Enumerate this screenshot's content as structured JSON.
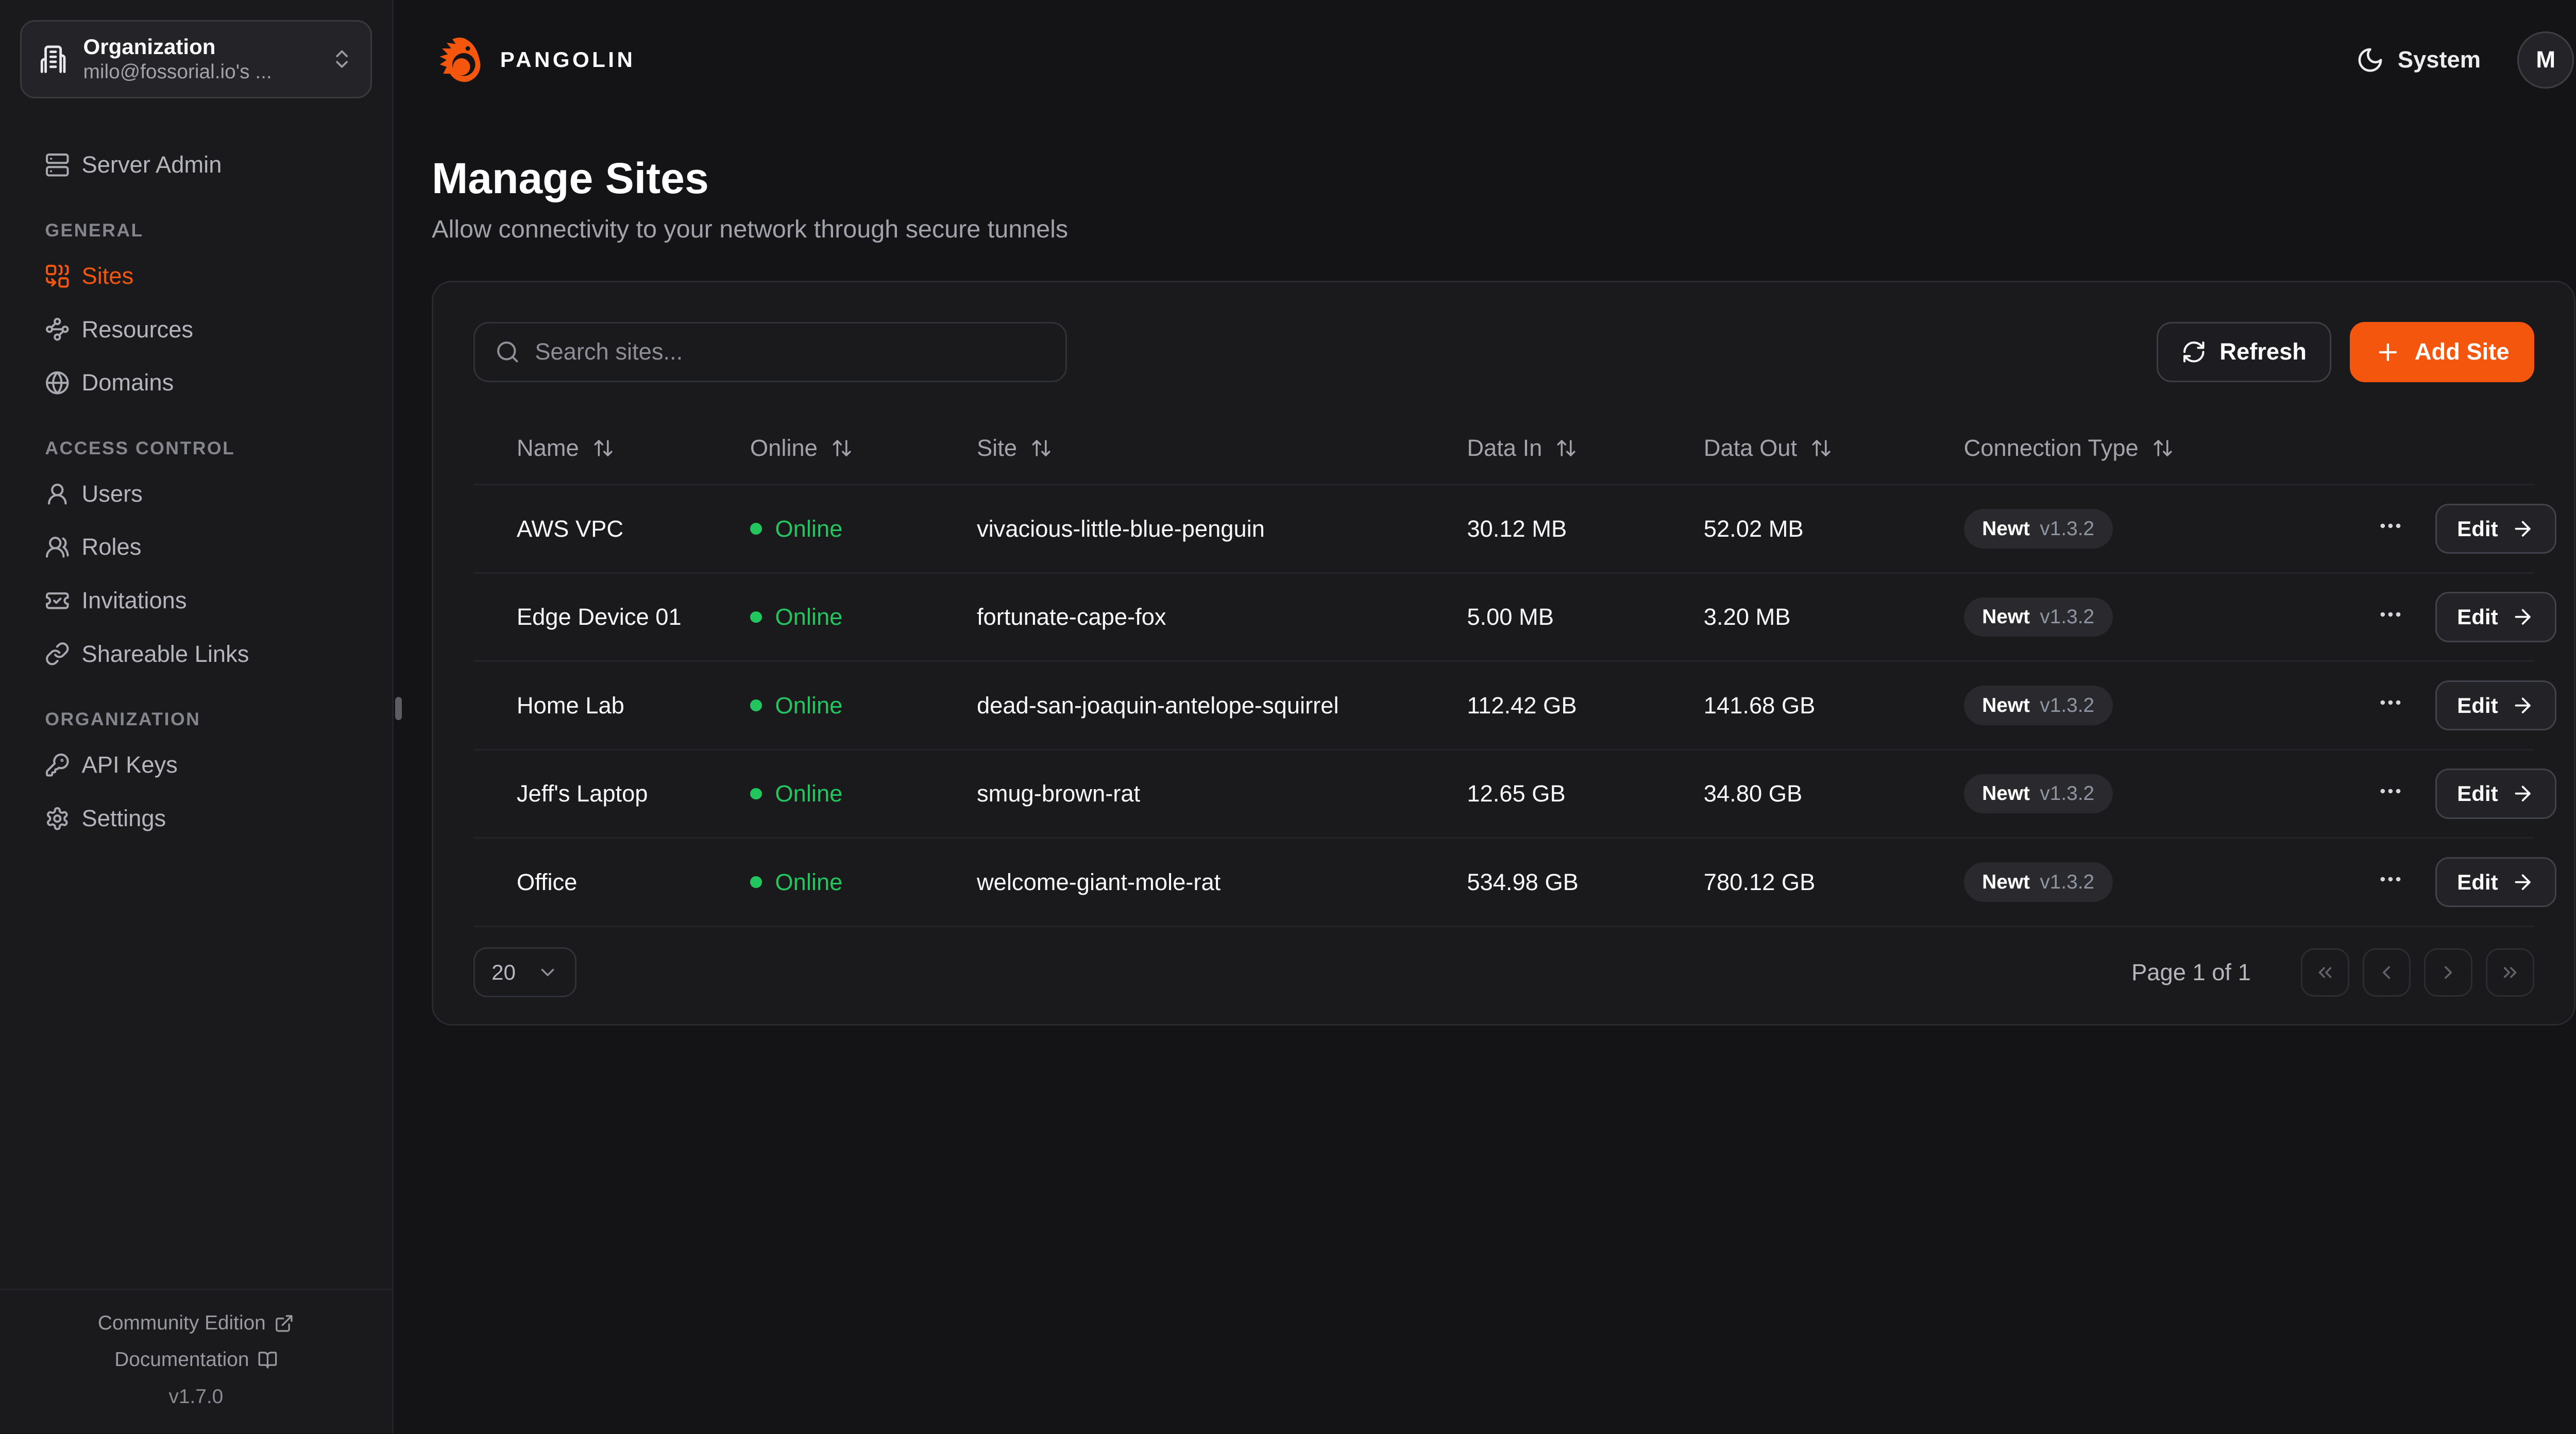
{
  "colors": {
    "accent": "#f4560e",
    "online": "#22c55e"
  },
  "org_switcher": {
    "title": "Organization",
    "subtitle": "milo@fossorial.io's ..."
  },
  "brand": {
    "name": "PANGOLIN"
  },
  "topbar": {
    "theme": "System",
    "avatar_initial": "M"
  },
  "sidebar": {
    "standalone": {
      "label": "Server Admin",
      "icon": "server-icon"
    },
    "sections": [
      {
        "label": "GENERAL",
        "items": [
          {
            "label": "Sites",
            "icon": "combine-icon",
            "active": true
          },
          {
            "label": "Resources",
            "icon": "waypoints-icon",
            "active": false
          },
          {
            "label": "Domains",
            "icon": "globe-icon",
            "active": false
          }
        ]
      },
      {
        "label": "ACCESS CONTROL",
        "items": [
          {
            "label": "Users",
            "icon": "user-icon",
            "active": false
          },
          {
            "label": "Roles",
            "icon": "users-icon",
            "active": false
          },
          {
            "label": "Invitations",
            "icon": "ticket-check-icon",
            "active": false
          },
          {
            "label": "Shareable Links",
            "icon": "link-icon",
            "active": false
          }
        ]
      },
      {
        "label": "ORGANIZATION",
        "items": [
          {
            "label": "API Keys",
            "icon": "key-icon",
            "active": false
          },
          {
            "label": "Settings",
            "icon": "gear-icon",
            "active": false
          }
        ]
      }
    ],
    "footer": {
      "community_edition": "Community Edition",
      "documentation": "Documentation",
      "version": "v1.7.0"
    }
  },
  "page": {
    "title": "Manage Sites",
    "subtitle": "Allow connectivity to your network through secure tunnels"
  },
  "toolbar": {
    "search_placeholder": "Search sites...",
    "refresh": "Refresh",
    "add_site": "Add Site"
  },
  "table": {
    "columns": [
      {
        "label": "Name",
        "sortable": true
      },
      {
        "label": "Online",
        "sortable": true
      },
      {
        "label": "Site",
        "sortable": true
      },
      {
        "label": "Data In",
        "sortable": true
      },
      {
        "label": "Data Out",
        "sortable": true
      },
      {
        "label": "Connection Type",
        "sortable": true
      }
    ],
    "rows": [
      {
        "name": "AWS VPC",
        "status": "Online",
        "site": "vivacious-little-blue-penguin",
        "data_in": "30.12 MB",
        "data_out": "52.02 MB",
        "connection": {
          "type": "Newt",
          "version": "v1.3.2"
        },
        "edit": "Edit"
      },
      {
        "name": "Edge Device 01",
        "status": "Online",
        "site": "fortunate-cape-fox",
        "data_in": "5.00 MB",
        "data_out": "3.20 MB",
        "connection": {
          "type": "Newt",
          "version": "v1.3.2"
        },
        "edit": "Edit"
      },
      {
        "name": "Home Lab",
        "status": "Online",
        "site": "dead-san-joaquin-antelope-squirrel",
        "data_in": "112.42 GB",
        "data_out": "141.68 GB",
        "connection": {
          "type": "Newt",
          "version": "v1.3.2"
        },
        "edit": "Edit"
      },
      {
        "name": "Jeff's Laptop",
        "status": "Online",
        "site": "smug-brown-rat",
        "data_in": "12.65 GB",
        "data_out": "34.80 GB",
        "connection": {
          "type": "Newt",
          "version": "v1.3.2"
        },
        "edit": "Edit"
      },
      {
        "name": "Office",
        "status": "Online",
        "site": "welcome-giant-mole-rat",
        "data_in": "534.98 GB",
        "data_out": "780.12 GB",
        "connection": {
          "type": "Newt",
          "version": "v1.3.2"
        },
        "edit": "Edit"
      }
    ]
  },
  "pagination": {
    "page_size": "20",
    "status": "Page 1 of 1"
  }
}
